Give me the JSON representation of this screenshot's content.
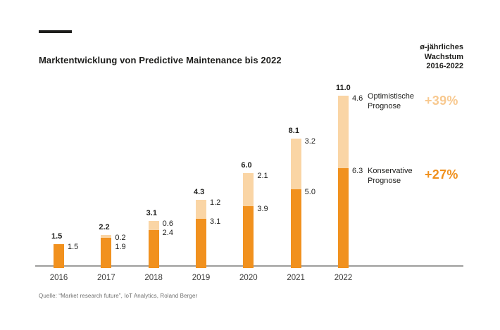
{
  "header": {
    "title": "Marktentwicklung von Predictive Maintenance bis 2022",
    "right_lines": [
      "ø-jährliches",
      "Wachstum",
      "2016-2022"
    ]
  },
  "chart_data": {
    "type": "bar",
    "stacked": true,
    "title": "Marktentwicklung von Predictive Maintenance bis 2022",
    "categories": [
      "2016",
      "2017",
      "2018",
      "2019",
      "2020",
      "2021",
      "2022"
    ],
    "series": [
      {
        "name": "Konservative Prognose",
        "values": [
          1.5,
          1.9,
          2.4,
          3.1,
          3.9,
          5.0,
          6.3
        ],
        "labels": [
          "1.5",
          "1.9",
          "2.4",
          "3.1",
          "3.9",
          "5.0",
          "6.3"
        ]
      },
      {
        "name": "Optimistische Prognose",
        "values": [
          0,
          0.2,
          0.6,
          1.2,
          2.1,
          3.2,
          4.6
        ],
        "labels": [
          "",
          "0.2",
          "0.6",
          "1.2",
          "2.1",
          "3.2",
          "4.6"
        ]
      }
    ],
    "totals": {
      "values": [
        1.5,
        2.2,
        3.1,
        4.3,
        6.0,
        8.1,
        11.0
      ],
      "labels": [
        "1.5",
        "2.2",
        "3.1",
        "4.3",
        "6.0",
        "8.1",
        "11.0"
      ]
    },
    "ylim": [
      0,
      11.5
    ],
    "grid": false,
    "legend_position": "right"
  },
  "legend": {
    "optimistic": {
      "lines": [
        "Optimistische",
        "Prognose"
      ],
      "growth": "+39%"
    },
    "conservative": {
      "lines": [
        "Konservative",
        "Prognose"
      ],
      "growth": "+27%"
    }
  },
  "colors": {
    "conservative": "#F1911E",
    "optimistic": "#FAD5A5",
    "growth_optimistic": "#F8C990",
    "growth_conservative": "#F0911E",
    "axis": "#9D9D9C",
    "text": "#1D1D1B"
  },
  "source": "Quelle: “Market research future”, IoT Analytics, Roland Berger"
}
